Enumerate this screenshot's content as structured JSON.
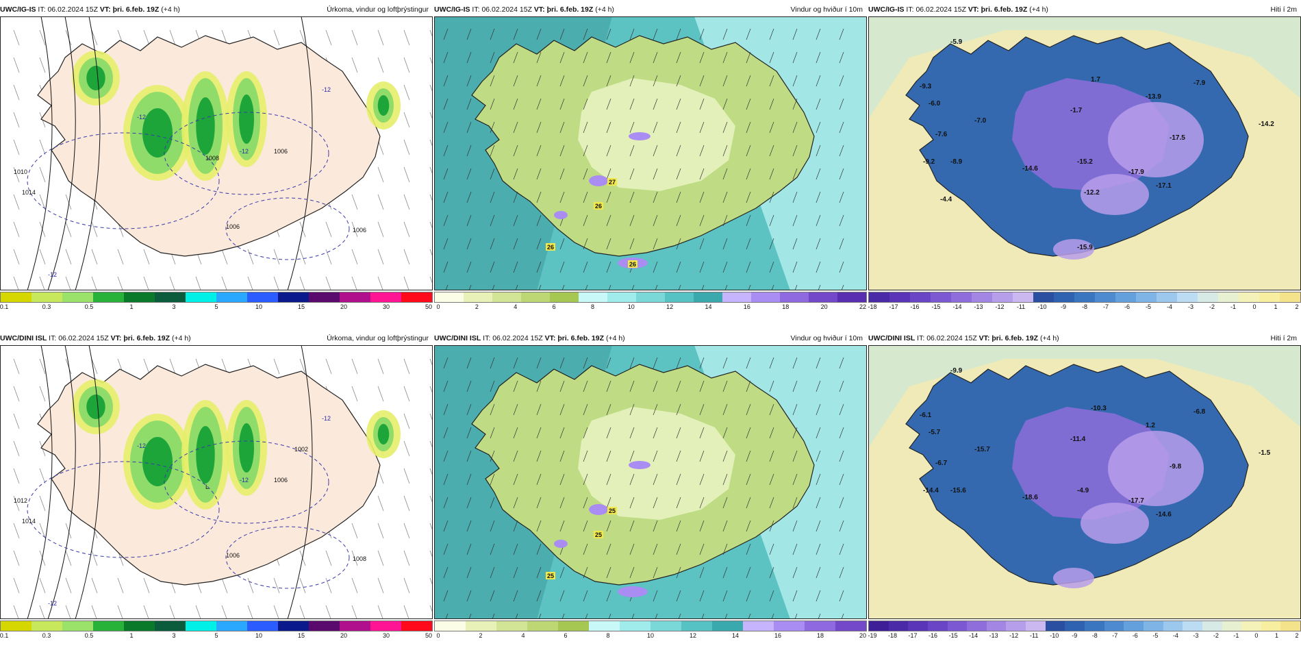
{
  "panels": [
    {
      "model": "UWC/IG-IS",
      "it_label": "IT:",
      "it_value": "06.02.2024 15Z",
      "vt_label": "VT:",
      "vt_value": "þri. 6.feb. 19Z",
      "lead": "(+4 h)",
      "product": "Úrkoma, vindur og loftþrýstingur",
      "map_type": "precip",
      "legend_colors": [
        "#d7d700",
        "#c6e85a",
        "#9be26b",
        "#28b23a",
        "#0a7a2a",
        "#0a5c3c",
        "#00f0e8",
        "#2aa8ff",
        "#2a5cff",
        "#0a1a8c",
        "#5a0a6c",
        "#b0108c",
        "#ff1493",
        "#ff0a1a"
      ],
      "legend_ticks": [
        "0.1",
        "0.3",
        "0.5",
        "1",
        "3",
        "5",
        "10",
        "15",
        "20",
        "30",
        "50"
      ],
      "map_labels": [
        "1006",
        "1014",
        "1010",
        "-12",
        "-12",
        "-12",
        "-12",
        "1006",
        "1006",
        "1008"
      ]
    },
    {
      "model": "UWC/IG-IS",
      "it_label": "IT:",
      "it_value": "06.02.2024 15Z",
      "vt_label": "VT:",
      "vt_value": "þri. 6.feb. 19Z",
      "lead": "(+4 h)",
      "product": "Vindur og hviður í 10m",
      "map_type": "wind",
      "legend_colors": [
        "#fbfde6",
        "#e7f1b8",
        "#d2e596",
        "#bcd774",
        "#a6c852",
        "#c8f8f8",
        "#a0ebeb",
        "#7ad8d8",
        "#56c2c4",
        "#3aa9ad",
        "#c6b4ff",
        "#a98df2",
        "#8e69e0",
        "#7349c9",
        "#5a2eb0"
      ],
      "legend_ticks": [
        "0",
        "2",
        "4",
        "6",
        "8",
        "10",
        "12",
        "14",
        "16",
        "18",
        "20",
        "22"
      ],
      "map_labels": [
        "27",
        "26",
        "26",
        "26"
      ]
    },
    {
      "model": "UWC/IG-IS",
      "it_label": "IT:",
      "it_value": "06.02.2024 15Z",
      "vt_label": "VT:",
      "vt_value": "þri. 6.feb. 19Z",
      "lead": "(+4 h)",
      "product": "Hiti í 2m",
      "map_type": "temp",
      "legend_colors": [
        "#4b2aa8",
        "#5a35b8",
        "#6a45c6",
        "#7c58d2",
        "#8f6edc",
        "#a386e4",
        "#b79eea",
        "#cbb8f0",
        "#2a4fa0",
        "#2f62b0",
        "#3a75c0",
        "#4d8ad0",
        "#64a0dc",
        "#7fb4e6",
        "#9dc8ee",
        "#bcdcf4",
        "#d7eae6",
        "#e8f0d2",
        "#f4f2b8",
        "#f7eea0",
        "#f5e38c"
      ],
      "legend_ticks": [
        "-18",
        "-17",
        "-16",
        "-15",
        "-14",
        "-13",
        "-12",
        "-11",
        "-10",
        "-9",
        "-8",
        "-7",
        "-6",
        "-5",
        "-4",
        "-3",
        "-2",
        "-1",
        "0",
        "1",
        "2"
      ],
      "map_labels": [
        "-5.9",
        "-9.3",
        "-6.0",
        "1.7",
        "-7.9",
        "-13.9",
        "-14.2",
        "-7.6",
        "-7.0",
        "-1.7",
        "-17.5",
        "-9.2",
        "-8.9",
        "-14.6",
        "-15.2",
        "-17.9",
        "-17.1",
        "-4.4",
        "-12.2",
        "-15.9"
      ]
    },
    {
      "model": "UWC/DINI ISL",
      "it_label": "IT:",
      "it_value": "06.02.2024 15Z",
      "vt_label": "VT:",
      "vt_value": "þri. 6.feb. 19Z",
      "lead": "(+4 h)",
      "product": "Úrkoma, vindur og loftþrýstingur",
      "map_type": "precip",
      "legend_colors": [
        "#d7d700",
        "#c6e85a",
        "#9be26b",
        "#28b23a",
        "#0a7a2a",
        "#0a5c3c",
        "#00f0e8",
        "#2aa8ff",
        "#2a5cff",
        "#0a1a8c",
        "#5a0a6c",
        "#b0108c",
        "#ff1493",
        "#ff0a1a"
      ],
      "legend_ticks": [
        "0.1",
        "0.3",
        "0.5",
        "1",
        "3",
        "5",
        "10",
        "15",
        "20",
        "30",
        "50"
      ],
      "map_labels": [
        "1006",
        "1014",
        "1012",
        "-12",
        "-12",
        "-12",
        "-12",
        "1008",
        "1006",
        "L",
        "1002"
      ]
    },
    {
      "model": "UWC/DINI ISL",
      "it_label": "IT:",
      "it_value": "06.02.2024 15Z",
      "vt_label": "VT:",
      "vt_value": "þri. 6.feb. 19Z",
      "lead": "(+4 h)",
      "product": "Vindur og hviður í 10m",
      "map_type": "wind",
      "legend_colors": [
        "#fbfde6",
        "#e7f1b8",
        "#d2e596",
        "#bcd774",
        "#a6c852",
        "#c8f8f8",
        "#a0ebeb",
        "#7ad8d8",
        "#56c2c4",
        "#3aa9ad",
        "#c6b4ff",
        "#a98df2",
        "#8e69e0",
        "#7349c9"
      ],
      "legend_ticks": [
        "0",
        "2",
        "4",
        "6",
        "8",
        "10",
        "12",
        "14",
        "16",
        "18",
        "20"
      ],
      "map_labels": [
        "25",
        "25",
        "25"
      ]
    },
    {
      "model": "UWC/DINI ISL",
      "it_label": "IT:",
      "it_value": "06.02.2024 15Z",
      "vt_label": "VT:",
      "vt_value": "þri. 6.feb. 19Z",
      "lead": "(+4 h)",
      "product": "Hiti í 2m",
      "map_type": "temp",
      "legend_colors": [
        "#3e1f98",
        "#4b2aa8",
        "#5a35b8",
        "#6a45c6",
        "#7c58d2",
        "#8f6edc",
        "#a386e4",
        "#b79eea",
        "#cbb8f0",
        "#2a4fa0",
        "#2f62b0",
        "#3a75c0",
        "#4d8ad0",
        "#64a0dc",
        "#7fb4e6",
        "#9dc8ee",
        "#bcdcf4",
        "#d7eae6",
        "#e8f0d2",
        "#f4f2b8",
        "#f7eea0",
        "#f5e38c"
      ],
      "legend_ticks": [
        "-19",
        "-18",
        "-17",
        "-16",
        "-15",
        "-14",
        "-13",
        "-12",
        "-11",
        "-10",
        "-9",
        "-8",
        "-7",
        "-6",
        "-5",
        "-4",
        "-3",
        "-2",
        "-1",
        "0",
        "1",
        "2"
      ],
      "map_labels": [
        "-9.9",
        "-6.1",
        "-5.7",
        "-10.3",
        "-6.8",
        "1.2",
        "-1.5",
        "-6.7",
        "-15.7",
        "-11.4",
        "-9.8",
        "-14.4",
        "-15.6",
        "-18.6",
        "-4.9",
        "-17.7",
        "-14.6"
      ]
    }
  ]
}
